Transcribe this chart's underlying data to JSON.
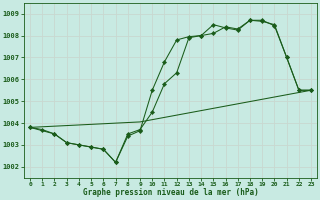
{
  "title": "Graphe pression niveau de la mer (hPa)",
  "bg_color": "#c8eae2",
  "grid_color": "#b0d0c8",
  "line_color": "#1a5c1a",
  "xlim": [
    -0.5,
    23.5
  ],
  "ylim": [
    1001.5,
    1009.5
  ],
  "yticks": [
    1002,
    1003,
    1004,
    1005,
    1006,
    1007,
    1008,
    1009
  ],
  "xticks": [
    0,
    1,
    2,
    3,
    4,
    5,
    6,
    7,
    8,
    9,
    10,
    11,
    12,
    13,
    14,
    15,
    16,
    17,
    18,
    19,
    20,
    21,
    22,
    23
  ],
  "line1_x": [
    0,
    1,
    2,
    3,
    4,
    5,
    6,
    7,
    8,
    9,
    10,
    11,
    12,
    13,
    14,
    15,
    16,
    17,
    18,
    19,
    20,
    21,
    22,
    23
  ],
  "line1_y": [
    1003.8,
    1003.7,
    1003.5,
    1003.1,
    1003.0,
    1002.9,
    1002.8,
    1002.2,
    1003.4,
    1003.65,
    1005.5,
    1006.8,
    1007.8,
    1007.95,
    1008.0,
    1008.5,
    1008.35,
    1008.25,
    1008.7,
    1008.65,
    1008.5,
    1007.0,
    1005.5,
    1005.5
  ],
  "line2_x": [
    0,
    2,
    3,
    4,
    5,
    6,
    7,
    8,
    9,
    10,
    11,
    12,
    13,
    14,
    15,
    16,
    17,
    18,
    19,
    20,
    21,
    22,
    23
  ],
  "line2_y": [
    1003.8,
    1003.5,
    1003.1,
    1003.0,
    1002.9,
    1002.8,
    1002.2,
    1003.5,
    1003.7,
    1004.5,
    1005.8,
    1006.3,
    1007.9,
    1008.0,
    1008.1,
    1008.4,
    1008.3,
    1008.7,
    1008.7,
    1008.45,
    1007.0,
    1005.5,
    1005.5
  ],
  "line3_x": [
    0,
    9,
    23
  ],
  "line3_y": [
    1003.8,
    1004.05,
    1005.5
  ]
}
